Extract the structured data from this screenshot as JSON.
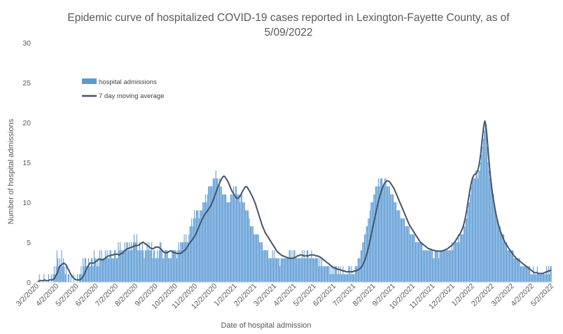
{
  "chart_data": {
    "type": "bar",
    "title_lines": [
      "Epidemic curve of hospitalized COVID-19 cases reported in Lexington-Fayette County, as of",
      "5/09/2022"
    ],
    "xlabel": "Date of hospital admission",
    "ylabel": "Number of hospital admissions",
    "ylim": [
      0,
      30
    ],
    "yticks": [
      0,
      5,
      10,
      15,
      20,
      25,
      30
    ],
    "x_tick_labels": [
      "3/2/2020",
      "4/2/2020",
      "5/2/2020",
      "6/2/2020",
      "7/2/2020",
      "8/2/2020",
      "9/2/2020",
      "10/2/2020",
      "11/2/2020",
      "12/2/2020",
      "1/2/2021",
      "2/2/2021",
      "3/2/2021",
      "4/2/2021",
      "5/2/2021",
      "6/2/2021",
      "7/2/2021",
      "8/2/2021",
      "9/2/2021",
      "10/2/2021",
      "11/2/2021",
      "12/2/2021",
      "1/2/2022",
      "2/2/2022",
      "3/2/2022",
      "4/2/2022",
      "5/2/2022"
    ],
    "grid": false,
    "legend_position": "top-left",
    "series": [
      {
        "name": "hospital admissions",
        "kind": "bar",
        "color": "#5b9bd5",
        "note": "daily counts, approximately one value per day from 3/2/2020 to 5/9/2022",
        "values": [
          0,
          0,
          1,
          0,
          0,
          0,
          0,
          1,
          0,
          0,
          0,
          0,
          1,
          0,
          0,
          1,
          0,
          1,
          2,
          1,
          2,
          4,
          3,
          2,
          3,
          2,
          4,
          2,
          3,
          2,
          1,
          2,
          0,
          1,
          1,
          0,
          1,
          0,
          0,
          1,
          0,
          0,
          0,
          1,
          0,
          1,
          1,
          2,
          1,
          3,
          2,
          3,
          3,
          2,
          2,
          3,
          2,
          2,
          3,
          3,
          2,
          4,
          3,
          3,
          2,
          3,
          2,
          4,
          3,
          4,
          3,
          3,
          3,
          4,
          3,
          4,
          3,
          3,
          4,
          4,
          3,
          3,
          3,
          4,
          4,
          3,
          3,
          5,
          4,
          5,
          4,
          4,
          4,
          4,
          5,
          4,
          5,
          5,
          4,
          5,
          4,
          5,
          4,
          5,
          6,
          5,
          5,
          6,
          4,
          4,
          5,
          4,
          4,
          5,
          4,
          3,
          4,
          4,
          5,
          4,
          5,
          4,
          4,
          5,
          3,
          4,
          4,
          3,
          3,
          4,
          3,
          4,
          5,
          5,
          4,
          3,
          3,
          4,
          4,
          4,
          4,
          3,
          3,
          3,
          3,
          4,
          4,
          4,
          4,
          4,
          3,
          4,
          5,
          4,
          5,
          5,
          5,
          5,
          6,
          5,
          6,
          5,
          5,
          6,
          7,
          7,
          8,
          7,
          8,
          9,
          8,
          9,
          9,
          9,
          8,
          9,
          9,
          9,
          10,
          10,
          10,
          11,
          10,
          11,
          12,
          12,
          12,
          12,
          12,
          13,
          13,
          13,
          14,
          13,
          13,
          12,
          13,
          12,
          12,
          11,
          11,
          11,
          11,
          11,
          10,
          10,
          10,
          10,
          11,
          11,
          11,
          12,
          11,
          12,
          12,
          11,
          11,
          11,
          10,
          11,
          11,
          10,
          10,
          10,
          9,
          9,
          9,
          9,
          8,
          7,
          7,
          7,
          7,
          6,
          6,
          6,
          6,
          6,
          6,
          5,
          5,
          5,
          5,
          4,
          4,
          4,
          4,
          4,
          4,
          3,
          3,
          3,
          3,
          4,
          3,
          4,
          3,
          3,
          3,
          3,
          3,
          2,
          3,
          3,
          3,
          3,
          3,
          3,
          3,
          3,
          3,
          4,
          4,
          3,
          4,
          3,
          4,
          4,
          3,
          3,
          3,
          3,
          3,
          3,
          3,
          4,
          3,
          4,
          3,
          3,
          4,
          4,
          3,
          3,
          3,
          4,
          3,
          3,
          3,
          3,
          3,
          3,
          3,
          2,
          3,
          2,
          3,
          2,
          2,
          2,
          2,
          2,
          2,
          2,
          2,
          1,
          2,
          1,
          2,
          1,
          2,
          2,
          2,
          1,
          2,
          1,
          2,
          1,
          1,
          2,
          1,
          1,
          1,
          1,
          1,
          2,
          2,
          1,
          2,
          1,
          1,
          1,
          2,
          2,
          2,
          3,
          3,
          3,
          4,
          4,
          5,
          5,
          6,
          6,
          7,
          7,
          8,
          8,
          9,
          10,
          10,
          10,
          11,
          11,
          12,
          12,
          12,
          13,
          12,
          13,
          13,
          13,
          12,
          12,
          13,
          13,
          12,
          12,
          12,
          12,
          11,
          11,
          11,
          11,
          10,
          10,
          10,
          9,
          9,
          9,
          9,
          8,
          8,
          8,
          8,
          8,
          7,
          7,
          7,
          7,
          7,
          6,
          6,
          6,
          6,
          6,
          6,
          5,
          5,
          5,
          5,
          5,
          5,
          5,
          5,
          4,
          4,
          4,
          4,
          4,
          4,
          4,
          4,
          4,
          4,
          4,
          3,
          3,
          4,
          4,
          4,
          4,
          3,
          4,
          4,
          4,
          4,
          4,
          4,
          4,
          4,
          4,
          4,
          4,
          4,
          4,
          5,
          4,
          5,
          5,
          5,
          5,
          5,
          6,
          5,
          6,
          6,
          6,
          6,
          7,
          7,
          8,
          8,
          9,
          10,
          10,
          11,
          12,
          13,
          13,
          13,
          13,
          14,
          14,
          13,
          14,
          14,
          15,
          16,
          17,
          18,
          19,
          20,
          19,
          17,
          15,
          14,
          13,
          13,
          12,
          11,
          11,
          10,
          9,
          8,
          8,
          7,
          7,
          7,
          6,
          6,
          6,
          6,
          5,
          5,
          5,
          4,
          4,
          4,
          4,
          4,
          4,
          4,
          3,
          3,
          3,
          3,
          3,
          3,
          3,
          2,
          2,
          2,
          2,
          2,
          2,
          2,
          2,
          2,
          2,
          2,
          1,
          1,
          1,
          2,
          1,
          1,
          1,
          2,
          1,
          1,
          1,
          1,
          1,
          1,
          1,
          1,
          1,
          2,
          1,
          2,
          1,
          2,
          2
        ]
      },
      {
        "name": "7 day moving average",
        "kind": "line",
        "color": "#44546a",
        "values": [
          0.1,
          0.1,
          0.2,
          0.2,
          0.2,
          0.2,
          0.2,
          0.3,
          0.2,
          0.2,
          0.2,
          0.2,
          0.3,
          0.3,
          0.3,
          0.3,
          0.4,
          0.5,
          0.8,
          1.0,
          1.3,
          1.7,
          2.0,
          2.1,
          2.2,
          2.3,
          2.4,
          2.3,
          2.2,
          2.0,
          1.7,
          1.5,
          1.2,
          1.0,
          0.8,
          0.6,
          0.5,
          0.4,
          0.3,
          0.3,
          0.3,
          0.3,
          0.3,
          0.4,
          0.5,
          0.7,
          0.9,
          1.2,
          1.5,
          1.8,
          2.0,
          2.2,
          2.4,
          2.4,
          2.4,
          2.4,
          2.4,
          2.5,
          2.6,
          2.7,
          2.8,
          2.9,
          2.9,
          2.8,
          2.8,
          2.8,
          2.9,
          3.0,
          3.1,
          3.2,
          3.3,
          3.3,
          3.3,
          3.4,
          3.4,
          3.4,
          3.5,
          3.5,
          3.5,
          3.5,
          3.5,
          3.4,
          3.5,
          3.6,
          3.6,
          3.7,
          3.9,
          4.0,
          4.1,
          4.2,
          4.2,
          4.3,
          4.3,
          4.4,
          4.4,
          4.5,
          4.5,
          4.6,
          4.6,
          4.6,
          4.6,
          4.7,
          4.8,
          4.9,
          5.0,
          5.0,
          4.9,
          4.8,
          4.7,
          4.6,
          4.5,
          4.4,
          4.3,
          4.2,
          4.2,
          4.2,
          4.3,
          4.4,
          4.4,
          4.4,
          4.4,
          4.3,
          4.2,
          4.1,
          3.9,
          3.8,
          3.7,
          3.7,
          3.7,
          3.7,
          3.8,
          3.9,
          3.9,
          3.9,
          3.8,
          3.7,
          3.7,
          3.7,
          3.6,
          3.6,
          3.6,
          3.6,
          3.6,
          3.7,
          3.8,
          3.9,
          4.0,
          4.1,
          4.3,
          4.5,
          4.7,
          4.9,
          5.1,
          5.2,
          5.4,
          5.6,
          5.8,
          6.0,
          6.3,
          6.6,
          6.9,
          7.2,
          7.5,
          7.8,
          8.0,
          8.3,
          8.5,
          8.7,
          8.8,
          9.0,
          9.2,
          9.4,
          9.6,
          9.9,
          10.2,
          10.5,
          10.9,
          11.2,
          11.6,
          11.9,
          12.2,
          12.5,
          12.8,
          13.0,
          13.2,
          13.3,
          13.2,
          13.0,
          12.8,
          12.6,
          12.3,
          12.0,
          11.7,
          11.4,
          11.2,
          11.0,
          10.8,
          10.6,
          10.5,
          10.5,
          10.6,
          10.8,
          11.0,
          11.3,
          11.5,
          11.7,
          11.9,
          12.0,
          11.9,
          11.7,
          11.5,
          11.3,
          11.0,
          10.8,
          10.5,
          10.2,
          9.9,
          9.5,
          9.1,
          8.7,
          8.3,
          7.9,
          7.5,
          7.1,
          6.8,
          6.5,
          6.2,
          6.0,
          5.8,
          5.6,
          5.4,
          5.2,
          5.0,
          4.8,
          4.6,
          4.4,
          4.2,
          4.0,
          3.8,
          3.7,
          3.6,
          3.5,
          3.4,
          3.3,
          3.3,
          3.2,
          3.2,
          3.1,
          3.1,
          3.0,
          3.0,
          3.0,
          3.0,
          3.0,
          3.0,
          3.1,
          3.1,
          3.2,
          3.3,
          3.3,
          3.4,
          3.4,
          3.4,
          3.4,
          3.3,
          3.3,
          3.3,
          3.3,
          3.3,
          3.3,
          3.4,
          3.4,
          3.4,
          3.4,
          3.4,
          3.4,
          3.3,
          3.3,
          3.3,
          3.2,
          3.2,
          3.1,
          3.0,
          2.9,
          2.8,
          2.7,
          2.6,
          2.5,
          2.4,
          2.3,
          2.2,
          2.1,
          2.0,
          1.9,
          1.8,
          1.8,
          1.7,
          1.7,
          1.6,
          1.6,
          1.6,
          1.5,
          1.5,
          1.4,
          1.4,
          1.4,
          1.3,
          1.3,
          1.3,
          1.3,
          1.3,
          1.3,
          1.3,
          1.3,
          1.4,
          1.4,
          1.4,
          1.5,
          1.5,
          1.6,
          1.7,
          1.8,
          2.0,
          2.2,
          2.5,
          2.8,
          3.2,
          3.6,
          4.1,
          4.6,
          5.2,
          5.8,
          6.4,
          7.0,
          7.6,
          8.2,
          8.8,
          9.4,
          9.9,
          10.4,
          10.9,
          11.3,
          11.7,
          12.0,
          12.3,
          12.5,
          12.6,
          12.7,
          12.7,
          12.6,
          12.5,
          12.3,
          12.1,
          11.9,
          11.7,
          11.4,
          11.1,
          10.8,
          10.5,
          10.2,
          9.9,
          9.6,
          9.3,
          9.0,
          8.7,
          8.4,
          8.1,
          7.8,
          7.5,
          7.2,
          7.0,
          6.8,
          6.6,
          6.4,
          6.2,
          6.0,
          5.8,
          5.6,
          5.4,
          5.2,
          5.0,
          4.9,
          4.8,
          4.7,
          4.6,
          4.5,
          4.4,
          4.3,
          4.2,
          4.2,
          4.1,
          4.1,
          4.0,
          4.0,
          4.0,
          3.9,
          3.9,
          3.9,
          3.9,
          3.9,
          3.9,
          3.9,
          3.9,
          4.0,
          4.0,
          4.1,
          4.1,
          4.2,
          4.3,
          4.4,
          4.5,
          4.6,
          4.7,
          4.9,
          5.0,
          5.2,
          5.4,
          5.6,
          5.8,
          6.0,
          6.2,
          6.5,
          6.8,
          7.2,
          7.7,
          8.3,
          9.0,
          9.8,
          10.6,
          11.4,
          12.1,
          12.7,
          13.1,
          13.4,
          13.5,
          13.6,
          13.7,
          14.0,
          14.5,
          15.2,
          16.2,
          17.4,
          18.6,
          19.6,
          20.2,
          19.7,
          18.5,
          17.0,
          15.4,
          14.0,
          12.8,
          11.7,
          10.8,
          10.0,
          9.3,
          8.6,
          8.0,
          7.5,
          7.0,
          6.6,
          6.2,
          5.9,
          5.6,
          5.3,
          5.0,
          4.8,
          4.6,
          4.4,
          4.2,
          4.0,
          3.8,
          3.7,
          3.5,
          3.3,
          3.2,
          3.0,
          2.9,
          2.8,
          2.7,
          2.6,
          2.5,
          2.4,
          2.3,
          2.2,
          2.1,
          2.0,
          1.9,
          1.8,
          1.7,
          1.6,
          1.5,
          1.4,
          1.3,
          1.2,
          1.2,
          1.2,
          1.2,
          1.1,
          1.1,
          1.1,
          1.1,
          1.1,
          1.1,
          1.2,
          1.2,
          1.3,
          1.3,
          1.4,
          1.4,
          1.5,
          1.5
        ]
      }
    ]
  }
}
